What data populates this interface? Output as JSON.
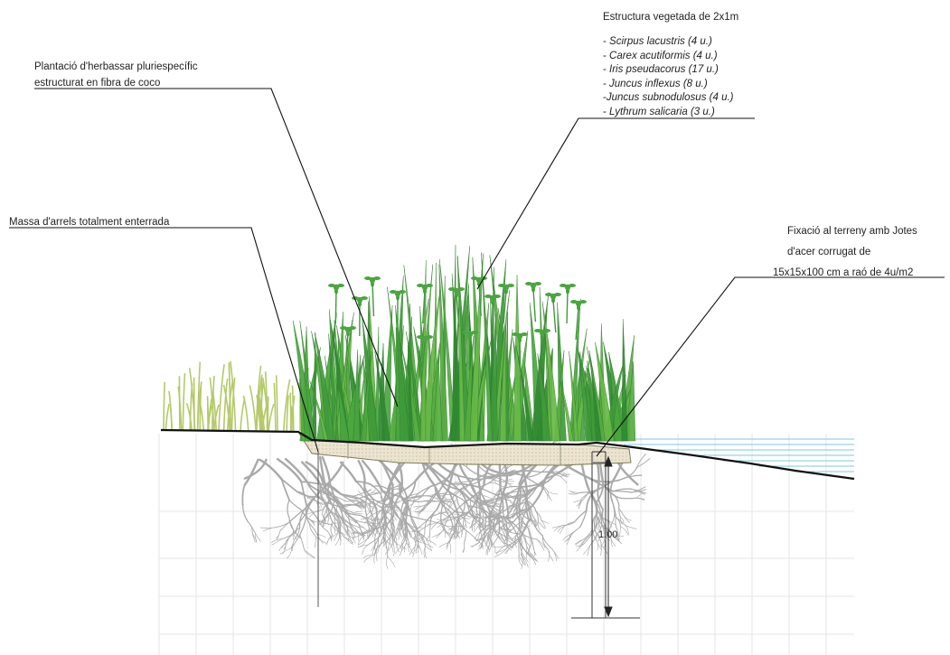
{
  "labels": {
    "plantacio": {
      "line1": "Plantació d'herbassar pluriespecífic",
      "line2": "estructurat en fibra de coco"
    },
    "massa": "Massa d'arrels totalment enterrada",
    "estructura": {
      "title": "Estructura vegetada de 2x1m",
      "species": [
        {
          "prefix": "- ",
          "name": "Scirpus lacustris",
          "qty": "(4 u.)"
        },
        {
          "prefix": "- ",
          "name": "Carex acutiformis",
          "qty": "(4 u.)"
        },
        {
          "prefix": "- ",
          "name": "Iris pseudacorus",
          "qty": "(17 u.)"
        },
        {
          "prefix": "- ",
          "name": "Juncus inflexus",
          "qty": "(8 u.)"
        },
        {
          "prefix": "-",
          "name": "Juncus subnodulosus",
          "qty": "(4 u.)"
        },
        {
          "prefix": "- ",
          "name": "Lythrum salicaria",
          "qty": "(3 u.)"
        }
      ]
    },
    "fixacio": {
      "line1": "Fixació al terreny amb Jotes",
      "line2": "d'acer corrugat de",
      "line3": "15x15x100 cm a raó de 4u/m2"
    },
    "dimension": "1.00"
  },
  "colors": {
    "water": "#7ec8de",
    "reeds_dark": "#3f9a3a",
    "reeds_light": "#68b848",
    "grass_yellow": "#b5c96a",
    "roots": "#a9a9a9",
    "coir_mat": "#ece4d0",
    "grid": "#e6e6e6",
    "ink": "#222222"
  }
}
